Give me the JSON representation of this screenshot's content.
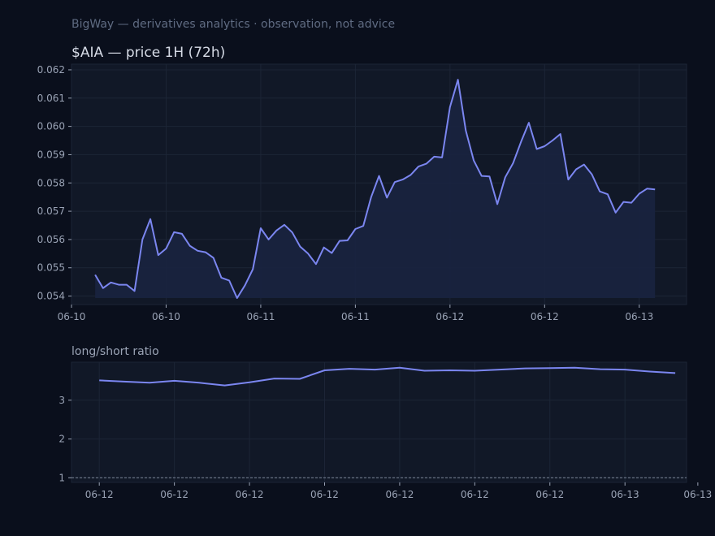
{
  "header": {
    "caption": "BigWay — derivatives analytics · observation, not advice"
  },
  "colors": {
    "background": "#0a0f1c",
    "panel": "#111827",
    "grid": "#1c2536",
    "line": "#7b86f0",
    "fill": "#1a2440",
    "text": "#9aa3b5",
    "caption": "#5f6b82",
    "title": "#d6dbe6",
    "reference": "#7d8698"
  },
  "chart_data": [
    {
      "type": "area",
      "title": "$AIA — price 1H (72h)",
      "xlabel": "",
      "ylabel": "",
      "ylim": [
        0.0537,
        0.0622
      ],
      "yticks": [
        0.054,
        0.055,
        0.056,
        0.057,
        0.058,
        0.059,
        0.06,
        0.061,
        0.062
      ],
      "ytick_labels": [
        "0.054",
        "0.055",
        "0.056",
        "0.057",
        "0.058",
        "0.059",
        "0.060",
        "0.061",
        "0.062"
      ],
      "xlim": [
        -3,
        75
      ],
      "xticks": [
        -3,
        9,
        21,
        33,
        45,
        57,
        69
      ],
      "xtick_labels": [
        "06-10",
        "06-10",
        "06-11",
        "06-11",
        "06-12",
        "06-12",
        "06-13"
      ],
      "grid": true,
      "series": [
        {
          "values": [
            0.05475,
            0.05428,
            0.05448,
            0.0544,
            0.0544,
            0.05418,
            0.056,
            0.05672,
            0.05545,
            0.05568,
            0.05626,
            0.0562,
            0.05578,
            0.0556,
            0.05555,
            0.05535,
            0.05465,
            0.05455,
            0.05393,
            0.05438,
            0.05495,
            0.0564,
            0.056,
            0.05632,
            0.05652,
            0.05625,
            0.05575,
            0.0555,
            0.05513,
            0.05572,
            0.05552,
            0.05595,
            0.05597,
            0.05637,
            0.05648,
            0.0575,
            0.05825,
            0.05748,
            0.05803,
            0.05812,
            0.05828,
            0.05858,
            0.05868,
            0.05893,
            0.0589,
            0.06068,
            0.06165,
            0.05985,
            0.0588,
            0.05825,
            0.05823,
            0.05725,
            0.0582,
            0.0587,
            0.05945,
            0.06013,
            0.0592,
            0.0593,
            0.0595,
            0.05973,
            0.05812,
            0.05848,
            0.05865,
            0.0583,
            0.0577,
            0.0576,
            0.05695,
            0.05733,
            0.0573,
            0.05762,
            0.0578,
            0.05777
          ]
        }
      ]
    },
    {
      "type": "line",
      "title": "long/short ratio",
      "xlabel": "",
      "ylabel": "",
      "ylim": [
        0.88,
        3.98
      ],
      "yticks": [
        1,
        2,
        3
      ],
      "ytick_labels": [
        "1",
        "2",
        "3"
      ],
      "xlim": [
        -0.37,
        7.82
      ],
      "xticks": [
        0,
        1,
        2,
        3,
        4,
        5,
        6,
        7,
        7.97
      ],
      "xtick_labels": [
        "06-12",
        "06-12",
        "06-12",
        "06-12",
        "06-12",
        "06-12",
        "06-12",
        "06-13",
        "06-13"
      ],
      "reference_line": 1,
      "grid": true,
      "series": [
        {
          "x": [
            0,
            0.33,
            0.67,
            1.0,
            1.33,
            1.67,
            2.0,
            2.33,
            2.67,
            3.0,
            3.33,
            3.67,
            4.0,
            4.33,
            4.67,
            5.0,
            5.33,
            5.67,
            6.0,
            6.33,
            6.67,
            7.0,
            7.33,
            7.67
          ],
          "values": [
            3.51,
            3.48,
            3.45,
            3.5,
            3.45,
            3.38,
            3.46,
            3.56,
            3.55,
            3.77,
            3.81,
            3.79,
            3.84,
            3.76,
            3.77,
            3.76,
            3.79,
            3.82,
            3.83,
            3.84,
            3.8,
            3.79,
            3.74,
            3.7
          ]
        }
      ]
    }
  ]
}
